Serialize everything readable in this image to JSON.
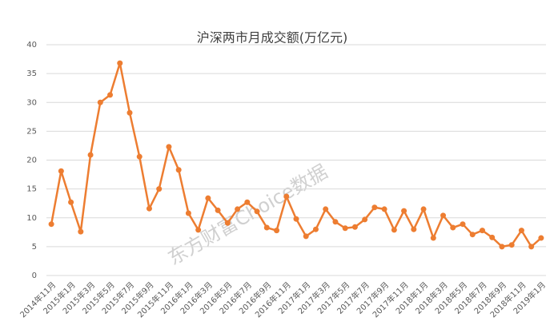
{
  "chart_data": {
    "type": "line",
    "title": "沪深两市月成交额(万亿元)",
    "watermark": "东方财富Choice数据",
    "categories": [
      "2014年11月",
      null,
      "2015年1月",
      null,
      "2015年3月",
      null,
      "2015年5月",
      null,
      "2015年7月",
      null,
      "2015年9月",
      null,
      "2015年11月",
      null,
      "2016年1月",
      null,
      "2016年3月",
      null,
      "2016年5月",
      null,
      "2016年7月",
      null,
      "2016年9月",
      null,
      "2016年11月",
      null,
      "2017年1月",
      null,
      "2017年3月",
      null,
      "2017年5月",
      null,
      "2017年7月",
      null,
      "2017年9月",
      null,
      "2017年11月",
      null,
      "2018年1月",
      null,
      "2018年3月",
      null,
      "2018年5月",
      null,
      "2018年7月",
      null,
      "2018年9月",
      null,
      "2018年11月",
      null,
      "2019年1月"
    ],
    "series": [
      {
        "name": "沪深两市月成交额",
        "color": "#ed7d31",
        "values": [
          8.9,
          18.1,
          12.7,
          7.6,
          20.9,
          30.0,
          31.3,
          36.8,
          28.2,
          20.6,
          11.6,
          15.0,
          22.3,
          18.3,
          10.8,
          7.9,
          13.4,
          11.3,
          9.1,
          11.5,
          12.7,
          11.1,
          8.3,
          7.8,
          13.7,
          9.8,
          6.8,
          8.0,
          11.5,
          9.3,
          8.2,
          8.4,
          9.7,
          11.8,
          11.5,
          7.9,
          11.2,
          8.0,
          11.5,
          6.5,
          10.4,
          8.3,
          8.9,
          7.1,
          7.8,
          6.6,
          5.0,
          5.3,
          7.8,
          5.0,
          6.5
        ]
      }
    ],
    "ylim": [
      0,
      40
    ],
    "yticks": [
      0,
      5,
      10,
      15,
      20,
      25,
      30,
      35,
      40
    ],
    "grid": true
  }
}
